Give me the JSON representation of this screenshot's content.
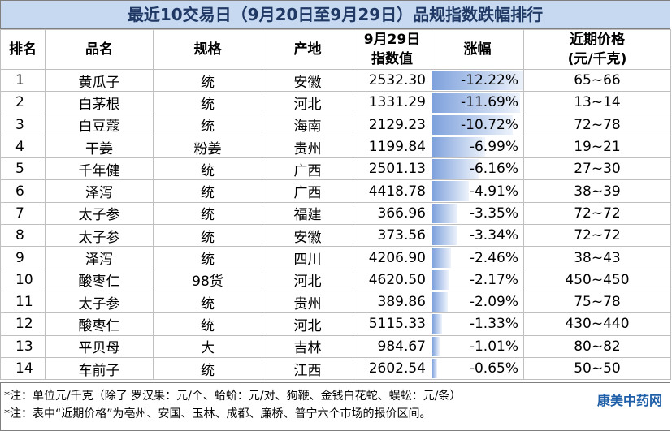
{
  "header": {
    "title": "最近10交易日（9月20日至9月29日）品规指数跌幅排行"
  },
  "table": {
    "columns": [
      "排名",
      "品名",
      "规格",
      "产地",
      "9月29日\n指数值",
      "涨幅",
      "近期价格\n(元/千克)"
    ],
    "rows": [
      [
        "1",
        "黄瓜子",
        "统",
        "安徽",
        "2532.30",
        "-12.22%",
        "65~66"
      ],
      [
        "2",
        "白茅根",
        "统",
        "河北",
        "1331.29",
        "-11.69%",
        "13~14"
      ],
      [
        "3",
        "白豆蔻",
        "统",
        "海南",
        "2129.23",
        "-10.72%",
        "72~78"
      ],
      [
        "4",
        "干姜",
        "粉姜",
        "贵州",
        "1199.84",
        "-6.99%",
        "19~21"
      ],
      [
        "5",
        "千年健",
        "统",
        "广西",
        "2501.13",
        "-6.16%",
        "27~30"
      ],
      [
        "6",
        "泽泻",
        "统",
        "广西",
        "4418.78",
        "-4.91%",
        "38~39"
      ],
      [
        "7",
        "太子参",
        "统",
        "福建",
        "366.96",
        "-3.35%",
        "72~72"
      ],
      [
        "8",
        "太子参",
        "统",
        "安徽",
        "373.56",
        "-3.34%",
        "72~72"
      ],
      [
        "9",
        "泽泻",
        "统",
        "四川",
        "4206.90",
        "-2.46%",
        "38~43"
      ],
      [
        "10",
        "酸枣仁",
        "98货",
        "河北",
        "4620.50",
        "-2.17%",
        "450~450"
      ],
      [
        "11",
        "太子参",
        "统",
        "贵州",
        "389.86",
        "-2.09%",
        "75~78"
      ],
      [
        "12",
        "酸枣仁",
        "统",
        "河北",
        "5115.33",
        "-1.33%",
        "430~440"
      ],
      [
        "13",
        "平贝母",
        "大",
        "吉林",
        "984.67",
        "-1.01%",
        "80~82"
      ],
      [
        "14",
        "车前子",
        "统",
        "江西",
        "2602.54",
        "-0.65%",
        "50~50"
      ]
    ]
  },
  "notes": [
    "*注：单位元/千克（除了 罗汉果：元/个、蛤蚧：元/对、狗鞭、金钱白花蛇、蜈蚣：元/条）",
    "*注：表中“近期价格”为亳州、安国、玉林、成都、廉桥、普宁六个市场的报价区间。"
  ],
  "logo": "康美中药网"
}
